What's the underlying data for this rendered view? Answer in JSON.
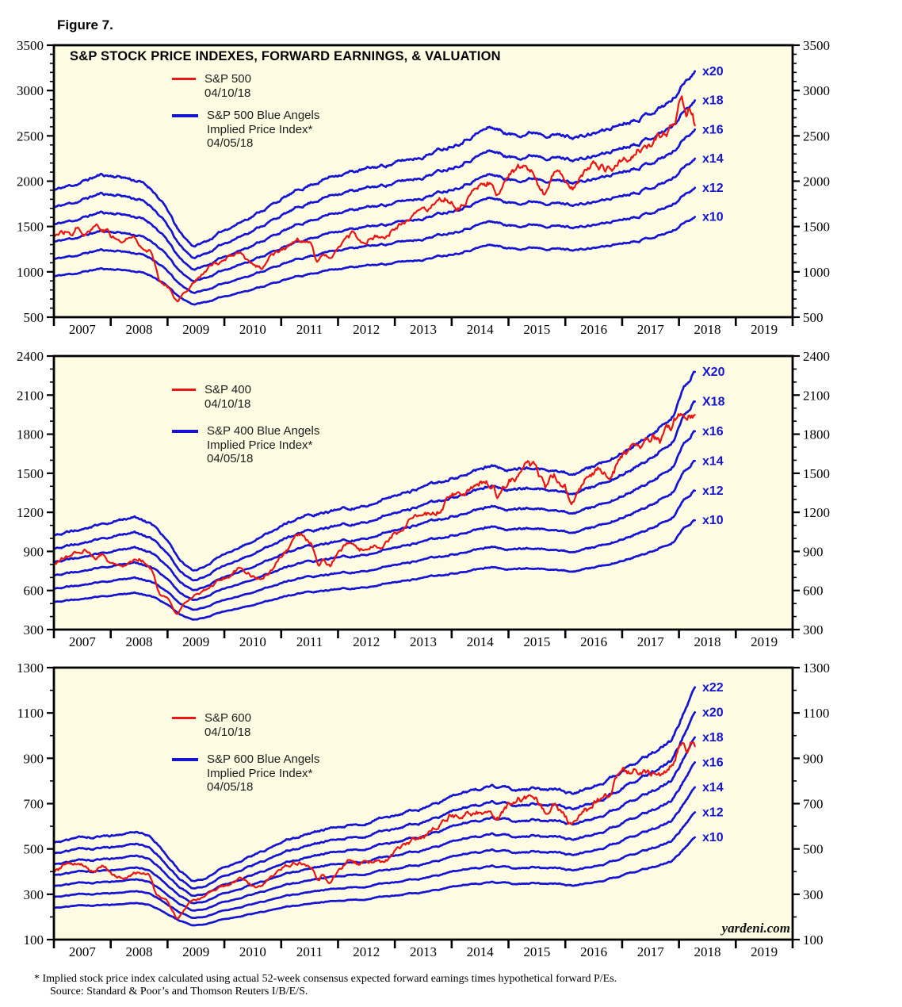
{
  "figure_label": "Figure 7.",
  "chart_title": "S&P STOCK PRICE INDEXES, FORWARD EARNINGS, & VALUATION",
  "branding": "yardeni.com",
  "footnote": {
    "line1": "* Implied stock price index calculated using actual 52-week consensus expected forward earnings times hypothetical forward P/Es.",
    "line2": "Source: Standard & Poor’s and Thomson Reuters I/B/E/S."
  },
  "colors": {
    "line_blue": "#1414d2",
    "line_red": "#ec1515",
    "plot_bg": "#fdfce2",
    "frame": "#000000",
    "tick_label": "#000000",
    "legend_text": "#1c1c1c"
  },
  "chart_data": [
    {
      "type": "line",
      "name": "sp500",
      "legend": {
        "price_label": "S&P 500",
        "price_date": "04/10/18",
        "blue_label_line1": "S&P 500 Blue Angels",
        "blue_label_line2": "Implied Price Index*",
        "blue_date": "04/05/18"
      },
      "ylim": [
        500,
        3500
      ],
      "ytick_major": 500,
      "ytick_minor": 100,
      "xlim": [
        2007,
        2020
      ],
      "x_year_labels": [
        "2007",
        "2008",
        "2009",
        "2010",
        "2011",
        "2012",
        "2013",
        "2014",
        "2015",
        "2016",
        "2017",
        "2018",
        "2019"
      ],
      "multiples": [
        20,
        18,
        16,
        14,
        12,
        10
      ],
      "multiple_labels": [
        "x20",
        "x18",
        "x16",
        "x14",
        "x12",
        "x10"
      ],
      "series_end_year": 2018.28,
      "forward_earnings_keypoints": [
        [
          2007.0,
          95
        ],
        [
          2007.4,
          98.5
        ],
        [
          2007.82,
          103.5
        ],
        [
          2008.2,
          102.5
        ],
        [
          2008.5,
          100
        ],
        [
          2008.75,
          95
        ],
        [
          2009.0,
          84
        ],
        [
          2009.2,
          72
        ],
        [
          2009.45,
          64
        ],
        [
          2009.7,
          67
        ],
        [
          2010.0,
          73
        ],
        [
          2010.5,
          81
        ],
        [
          2011.0,
          90
        ],
        [
          2011.5,
          98
        ],
        [
          2012.0,
          104
        ],
        [
          2012.5,
          106.5
        ],
        [
          2013.0,
          110
        ],
        [
          2013.5,
          114
        ],
        [
          2014.0,
          120
        ],
        [
          2014.4,
          126
        ],
        [
          2014.7,
          130
        ],
        [
          2015.05,
          125.5
        ],
        [
          2015.5,
          127.5
        ],
        [
          2016.0,
          125
        ],
        [
          2016.3,
          124.5
        ],
        [
          2016.7,
          128
        ],
        [
          2017.0,
          132
        ],
        [
          2017.5,
          138
        ],
        [
          2017.9,
          145
        ],
        [
          2018.1,
          155
        ],
        [
          2018.28,
          162
        ]
      ],
      "price_keypoints": [
        [
          2007.0,
          1418
        ],
        [
          2007.15,
          1438
        ],
        [
          2007.3,
          1420
        ],
        [
          2007.42,
          1530
        ],
        [
          2007.55,
          1455
        ],
        [
          2007.75,
          1540
        ],
        [
          2007.85,
          1480
        ],
        [
          2007.95,
          1478
        ],
        [
          2008.0,
          1395
        ],
        [
          2008.2,
          1330
        ],
        [
          2008.4,
          1390
        ],
        [
          2008.6,
          1280
        ],
        [
          2008.7,
          1260
        ],
        [
          2008.75,
          1160
        ],
        [
          2008.85,
          900
        ],
        [
          2008.95,
          880
        ],
        [
          2009.05,
          830
        ],
        [
          2009.17,
          680
        ],
        [
          2009.35,
          810
        ],
        [
          2009.5,
          920
        ],
        [
          2009.75,
          1060
        ],
        [
          2010.0,
          1120
        ],
        [
          2010.3,
          1190
        ],
        [
          2010.5,
          1070
        ],
        [
          2010.65,
          1030
        ],
        [
          2010.8,
          1180
        ],
        [
          2011.0,
          1280
        ],
        [
          2011.3,
          1330
        ],
        [
          2011.55,
          1270
        ],
        [
          2011.62,
          1120
        ],
        [
          2011.75,
          1200
        ],
        [
          2011.85,
          1130
        ],
        [
          2012.0,
          1290
        ],
        [
          2012.25,
          1400
        ],
        [
          2012.45,
          1300
        ],
        [
          2012.7,
          1410
        ],
        [
          2012.85,
          1380
        ],
        [
          2013.0,
          1480
        ],
        [
          2013.4,
          1630
        ],
        [
          2013.5,
          1610
        ],
        [
          2013.75,
          1700
        ],
        [
          2014.0,
          1800
        ],
        [
          2014.1,
          1750
        ],
        [
          2014.5,
          1950
        ],
        [
          2014.75,
          1990
        ],
        [
          2014.8,
          1880
        ],
        [
          2015.0,
          2060
        ],
        [
          2015.2,
          2100
        ],
        [
          2015.45,
          2110
        ],
        [
          2015.63,
          1890
        ],
        [
          2015.8,
          2080
        ],
        [
          2015.95,
          2050
        ],
        [
          2016.1,
          1830
        ],
        [
          2016.3,
          2050
        ],
        [
          2016.55,
          2170
        ],
        [
          2016.85,
          2150
        ],
        [
          2017.0,
          2270
        ],
        [
          2017.2,
          2350
        ],
        [
          2017.45,
          2430
        ],
        [
          2017.7,
          2470
        ],
        [
          2017.9,
          2600
        ],
        [
          2018.05,
          2870
        ],
        [
          2018.12,
          2640
        ],
        [
          2018.2,
          2780
        ],
        [
          2018.28,
          2650
        ]
      ]
    },
    {
      "type": "line",
      "name": "sp400",
      "legend": {
        "price_label": "S&P 400",
        "price_date": "04/10/18",
        "blue_label_line1": "S&P 400 Blue Angels",
        "blue_label_line2": "Implied Price Index*",
        "blue_date": "04/05/18"
      },
      "ylim": [
        300,
        2400
      ],
      "ytick_major": 300,
      "ytick_minor": 100,
      "xlim": [
        2007,
        2020
      ],
      "x_year_labels": [
        "2007",
        "2008",
        "2009",
        "2010",
        "2011",
        "2012",
        "2013",
        "2014",
        "2015",
        "2016",
        "2017",
        "2018",
        "2019"
      ],
      "multiples": [
        20,
        18,
        16,
        14,
        12,
        10
      ],
      "multiple_labels": [
        "X20",
        "X18",
        "x16",
        "x14",
        "x12",
        "x10"
      ],
      "series_end_year": 2018.28,
      "forward_earnings_keypoints": [
        [
          2007.0,
          51
        ],
        [
          2007.5,
          53.5
        ],
        [
          2008.0,
          56
        ],
        [
          2008.4,
          58
        ],
        [
          2008.7,
          56
        ],
        [
          2009.0,
          49
        ],
        [
          2009.2,
          42
        ],
        [
          2009.45,
          37.5
        ],
        [
          2009.7,
          39.5
        ],
        [
          2010.0,
          44
        ],
        [
          2010.5,
          49
        ],
        [
          2011.0,
          55
        ],
        [
          2011.5,
          59
        ],
        [
          2012.0,
          61
        ],
        [
          2012.5,
          63
        ],
        [
          2013.0,
          66
        ],
        [
          2013.5,
          69.5
        ],
        [
          2014.0,
          73
        ],
        [
          2014.7,
          78
        ],
        [
          2015.1,
          76
        ],
        [
          2015.5,
          77
        ],
        [
          2016.2,
          74.5
        ],
        [
          2016.7,
          79
        ],
        [
          2017.0,
          83
        ],
        [
          2017.5,
          90
        ],
        [
          2017.9,
          97
        ],
        [
          2018.1,
          108
        ],
        [
          2018.28,
          115
        ]
      ],
      "price_keypoints": [
        [
          2007.0,
          805
        ],
        [
          2007.2,
          860
        ],
        [
          2007.4,
          890
        ],
        [
          2007.55,
          926
        ],
        [
          2007.7,
          860
        ],
        [
          2007.85,
          890
        ],
        [
          2008.0,
          815
        ],
        [
          2008.2,
          790
        ],
        [
          2008.35,
          855
        ],
        [
          2008.5,
          870
        ],
        [
          2008.65,
          800
        ],
        [
          2008.75,
          750
        ],
        [
          2008.85,
          580
        ],
        [
          2009.0,
          540
        ],
        [
          2009.17,
          400
        ],
        [
          2009.4,
          540
        ],
        [
          2009.6,
          580
        ],
        [
          2009.8,
          650
        ],
        [
          2010.0,
          700
        ],
        [
          2010.3,
          780
        ],
        [
          2010.5,
          700
        ],
        [
          2010.65,
          680
        ],
        [
          2010.9,
          800
        ],
        [
          2011.0,
          870
        ],
        [
          2011.3,
          1000
        ],
        [
          2011.35,
          1018
        ],
        [
          2011.55,
          950
        ],
        [
          2011.65,
          800
        ],
        [
          2011.75,
          880
        ],
        [
          2011.85,
          795
        ],
        [
          2012.0,
          880
        ],
        [
          2012.2,
          970
        ],
        [
          2012.4,
          920
        ],
        [
          2012.6,
          940
        ],
        [
          2012.8,
          960
        ],
        [
          2013.0,
          1020
        ],
        [
          2013.3,
          1130
        ],
        [
          2013.5,
          1180
        ],
        [
          2013.8,
          1230
        ],
        [
          2014.0,
          1340
        ],
        [
          2014.15,
          1290
        ],
        [
          2014.5,
          1400
        ],
        [
          2014.75,
          1420
        ],
        [
          2014.8,
          1330
        ],
        [
          2015.0,
          1440
        ],
        [
          2015.25,
          1520
        ],
        [
          2015.45,
          1540
        ],
        [
          2015.65,
          1380
        ],
        [
          2015.8,
          1470
        ],
        [
          2016.0,
          1380
        ],
        [
          2016.1,
          1250
        ],
        [
          2016.35,
          1450
        ],
        [
          2016.6,
          1520
        ],
        [
          2016.75,
          1510
        ],
        [
          2016.95,
          1660
        ],
        [
          2017.1,
          1700
        ],
        [
          2017.3,
          1720
        ],
        [
          2017.55,
          1750
        ],
        [
          2017.65,
          1710
        ],
        [
          2017.8,
          1800
        ],
        [
          2017.95,
          1900
        ],
        [
          2018.05,
          1970
        ],
        [
          2018.12,
          1840
        ],
        [
          2018.2,
          1930
        ],
        [
          2018.28,
          1900
        ]
      ]
    },
    {
      "type": "line",
      "name": "sp600",
      "legend": {
        "price_label": "S&P 600",
        "price_date": "04/10/18",
        "blue_label_line1": "S&P 600 Blue Angels",
        "blue_label_line2": "Implied Price Index*",
        "blue_date": "04/05/18"
      },
      "ylim": [
        100,
        1300
      ],
      "ytick_major": 200,
      "ytick_minor": 100,
      "xlim": [
        2007,
        2020
      ],
      "x_year_labels": [
        "2007",
        "2008",
        "2009",
        "2010",
        "2011",
        "2012",
        "2013",
        "2014",
        "2015",
        "2016",
        "2017",
        "2018",
        "2019"
      ],
      "multiples": [
        22,
        20,
        18,
        16,
        14,
        12,
        10
      ],
      "multiple_labels": [
        "x22",
        "x20",
        "x18",
        "x16",
        "x14",
        "x12",
        "x10"
      ],
      "series_end_year": 2018.28,
      "forward_earnings_keypoints": [
        [
          2007.0,
          24
        ],
        [
          2007.5,
          25
        ],
        [
          2008.0,
          25.5
        ],
        [
          2008.45,
          26.2
        ],
        [
          2008.7,
          25.2
        ],
        [
          2009.0,
          21.5
        ],
        [
          2009.2,
          18.5
        ],
        [
          2009.45,
          16.2
        ],
        [
          2009.7,
          17
        ],
        [
          2010.0,
          19
        ],
        [
          2010.5,
          21.5
        ],
        [
          2011.0,
          24
        ],
        [
          2011.5,
          26
        ],
        [
          2012.0,
          27
        ],
        [
          2012.5,
          28
        ],
        [
          2013.0,
          29.5
        ],
        [
          2013.5,
          31
        ],
        [
          2014.0,
          33
        ],
        [
          2014.7,
          35.5
        ],
        [
          2015.1,
          34.5
        ],
        [
          2015.5,
          35
        ],
        [
          2016.2,
          34
        ],
        [
          2016.7,
          36.5
        ],
        [
          2017.0,
          38.5
        ],
        [
          2017.5,
          41.5
        ],
        [
          2017.9,
          45
        ],
        [
          2018.1,
          50.5
        ],
        [
          2018.28,
          54.5
        ]
      ],
      "price_keypoints": [
        [
          2007.0,
          400
        ],
        [
          2007.2,
          430
        ],
        [
          2007.4,
          445
        ],
        [
          2007.5,
          440
        ],
        [
          2007.7,
          400
        ],
        [
          2007.85,
          430
        ],
        [
          2008.0,
          390
        ],
        [
          2008.2,
          370
        ],
        [
          2008.4,
          400
        ],
        [
          2008.55,
          410
        ],
        [
          2008.7,
          390
        ],
        [
          2008.8,
          310
        ],
        [
          2008.9,
          290
        ],
        [
          2009.0,
          270
        ],
        [
          2009.17,
          185
        ],
        [
          2009.4,
          260
        ],
        [
          2009.6,
          280
        ],
        [
          2009.8,
          310
        ],
        [
          2010.0,
          330
        ],
        [
          2010.3,
          380
        ],
        [
          2010.5,
          340
        ],
        [
          2010.65,
          330
        ],
        [
          2010.9,
          390
        ],
        [
          2011.0,
          415
        ],
        [
          2011.3,
          450
        ],
        [
          2011.55,
          420
        ],
        [
          2011.65,
          360
        ],
        [
          2011.75,
          400
        ],
        [
          2011.85,
          350
        ],
        [
          2012.0,
          400
        ],
        [
          2012.2,
          450
        ],
        [
          2012.4,
          430
        ],
        [
          2012.6,
          440
        ],
        [
          2012.8,
          450
        ],
        [
          2013.0,
          480
        ],
        [
          2013.3,
          530
        ],
        [
          2013.5,
          560
        ],
        [
          2013.8,
          610
        ],
        [
          2014.0,
          660
        ],
        [
          2014.15,
          630
        ],
        [
          2014.5,
          670
        ],
        [
          2014.7,
          680
        ],
        [
          2014.8,
          630
        ],
        [
          2015.0,
          690
        ],
        [
          2015.25,
          720
        ],
        [
          2015.45,
          740
        ],
        [
          2015.65,
          660
        ],
        [
          2015.8,
          700
        ],
        [
          2016.0,
          640
        ],
        [
          2016.1,
          600
        ],
        [
          2016.35,
          680
        ],
        [
          2016.6,
          720
        ],
        [
          2016.75,
          740
        ],
        [
          2016.95,
          840
        ],
        [
          2017.1,
          830
        ],
        [
          2017.3,
          850
        ],
        [
          2017.55,
          860
        ],
        [
          2017.65,
          820
        ],
        [
          2017.8,
          880
        ],
        [
          2017.95,
          930
        ],
        [
          2018.05,
          970
        ],
        [
          2018.12,
          910
        ],
        [
          2018.2,
          965
        ],
        [
          2018.28,
          950
        ]
      ]
    }
  ]
}
